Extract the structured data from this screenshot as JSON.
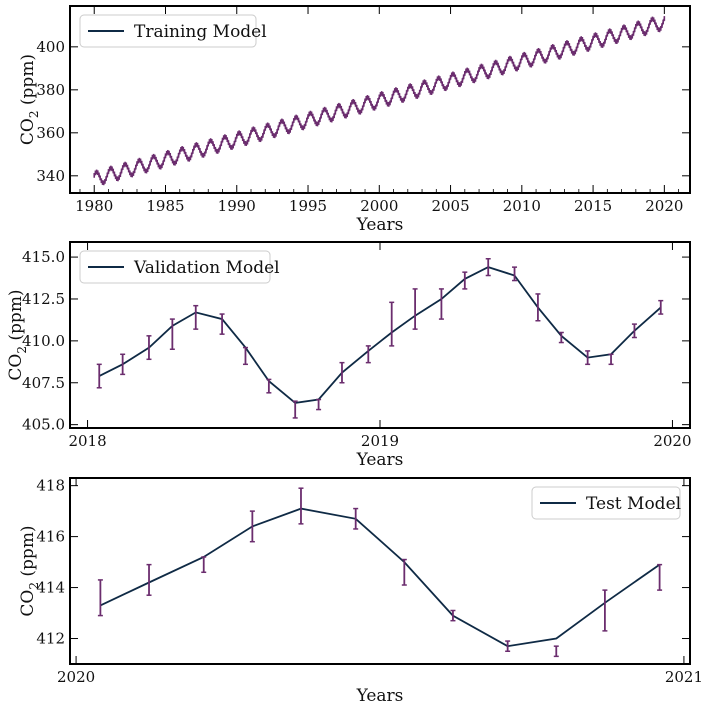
{
  "colors": {
    "model_line": "#0f2a45",
    "error_bars": "#6b2d6e",
    "axes": "#000000"
  },
  "chart_data": [
    {
      "type": "line",
      "panel": "training",
      "xlabel": "Years",
      "ylabel": "CO2 (ppm)",
      "ylabel_main": "CO",
      "ylabel_sub": "2",
      "ylabel_tail": " (ppm)",
      "xlim": [
        1978.3,
        2021.8
      ],
      "ylim": [
        332,
        419
      ],
      "xticks": [
        1980,
        1985,
        1990,
        1995,
        2000,
        2005,
        2010,
        2015,
        2020
      ],
      "xtick_labels": [
        "1980",
        "1985",
        "1990",
        "1995",
        "2000",
        "2005",
        "2010",
        "2015",
        "2020"
      ],
      "yticks": [
        340,
        360,
        380,
        400
      ],
      "ytick_labels": [
        "340",
        "360",
        "380",
        "400"
      ],
      "legend": "top-left",
      "series": [
        {
          "name": "Training Model",
          "trend": {
            "start_year": 1980,
            "start_value": 338.5,
            "end_year": 2020,
            "end_value": 411.5
          },
          "seasonal_amplitude": 3.0,
          "error_bar_halfwidth": 1.1
        }
      ]
    },
    {
      "type": "line",
      "panel": "validation",
      "xlabel": "Years",
      "ylabel": "CO2 (ppm)",
      "ylabel_main": "CO",
      "ylabel_sub": "2",
      "ylabel_tail": " (ppm)",
      "xlim": [
        2017.94,
        2020.06
      ],
      "ylim": [
        404.8,
        415.9
      ],
      "xticks": [
        2018,
        2019,
        2020
      ],
      "xtick_labels": [
        "2018",
        "2019",
        "2020"
      ],
      "yticks": [
        405.0,
        407.5,
        410.0,
        412.5,
        415.0
      ],
      "ytick_labels": [
        "405.0",
        "407.5",
        "410.0",
        "412.5",
        "415.0"
      ],
      "legend": "top-left",
      "x": [
        2018.04,
        2018.12,
        2018.21,
        2018.29,
        2018.37,
        2018.46,
        2018.54,
        2018.62,
        2018.71,
        2018.79,
        2018.87,
        2018.96,
        2019.04,
        2019.12,
        2019.21,
        2019.29,
        2019.37,
        2019.46,
        2019.54,
        2019.62,
        2019.71,
        2019.79,
        2019.87,
        2019.96
      ],
      "series": [
        {
          "name": "Validation Model",
          "values": [
            407.9,
            408.6,
            409.6,
            410.9,
            411.7,
            411.3,
            409.6,
            407.6,
            406.3,
            406.5,
            408.1,
            409.4,
            410.5,
            411.5,
            412.5,
            413.7,
            414.4,
            413.9,
            412.0,
            410.3,
            409.0,
            409.2,
            410.6,
            412.0
          ],
          "obs": [
            407.9,
            408.6,
            409.6,
            410.4,
            411.4,
            411.0,
            409.1,
            407.3,
            405.9,
            406.2,
            408.1,
            409.2,
            411.0,
            411.9,
            412.2,
            413.6,
            414.4,
            414.0,
            412.0,
            410.2,
            409.0,
            408.9,
            410.6,
            412.0
          ],
          "err": [
            0.7,
            0.6,
            0.7,
            0.9,
            0.7,
            0.6,
            0.5,
            0.4,
            0.5,
            0.3,
            0.6,
            0.5,
            1.3,
            1.2,
            0.9,
            0.5,
            0.5,
            0.4,
            0.8,
            0.3,
            0.4,
            0.3,
            0.4,
            0.4
          ]
        }
      ]
    },
    {
      "type": "line",
      "panel": "test",
      "xlabel": "Years",
      "ylabel": "CO2 (ppm)",
      "ylabel_main": "CO",
      "ylabel_sub": "2",
      "ylabel_tail": " (ppm)",
      "xlim": [
        2019.99,
        2021.01
      ],
      "ylim": [
        411.0,
        418.3
      ],
      "xticks": [
        2020,
        2021
      ],
      "xtick_labels": [
        "2020",
        "2021"
      ],
      "yticks": [
        412,
        414,
        416,
        418
      ],
      "ytick_labels": [
        "412",
        "414",
        "416",
        "418"
      ],
      "legend": "top-right",
      "x": [
        2020.04,
        2020.12,
        2020.21,
        2020.29,
        2020.37,
        2020.46,
        2020.54,
        2020.62,
        2020.71,
        2020.79,
        2020.87,
        2020.96
      ],
      "series": [
        {
          "name": "Test Model",
          "values": [
            413.3,
            414.2,
            415.2,
            416.4,
            417.1,
            416.7,
            415.0,
            412.9,
            411.7,
            412.0,
            413.4,
            414.9
          ],
          "obs": [
            413.6,
            414.3,
            414.9,
            416.4,
            417.2,
            416.7,
            414.6,
            412.9,
            411.7,
            411.5,
            413.1,
            414.4
          ],
          "err": [
            0.7,
            0.6,
            0.3,
            0.6,
            0.7,
            0.4,
            0.5,
            0.2,
            0.2,
            0.2,
            0.8,
            0.5
          ]
        }
      ]
    }
  ]
}
